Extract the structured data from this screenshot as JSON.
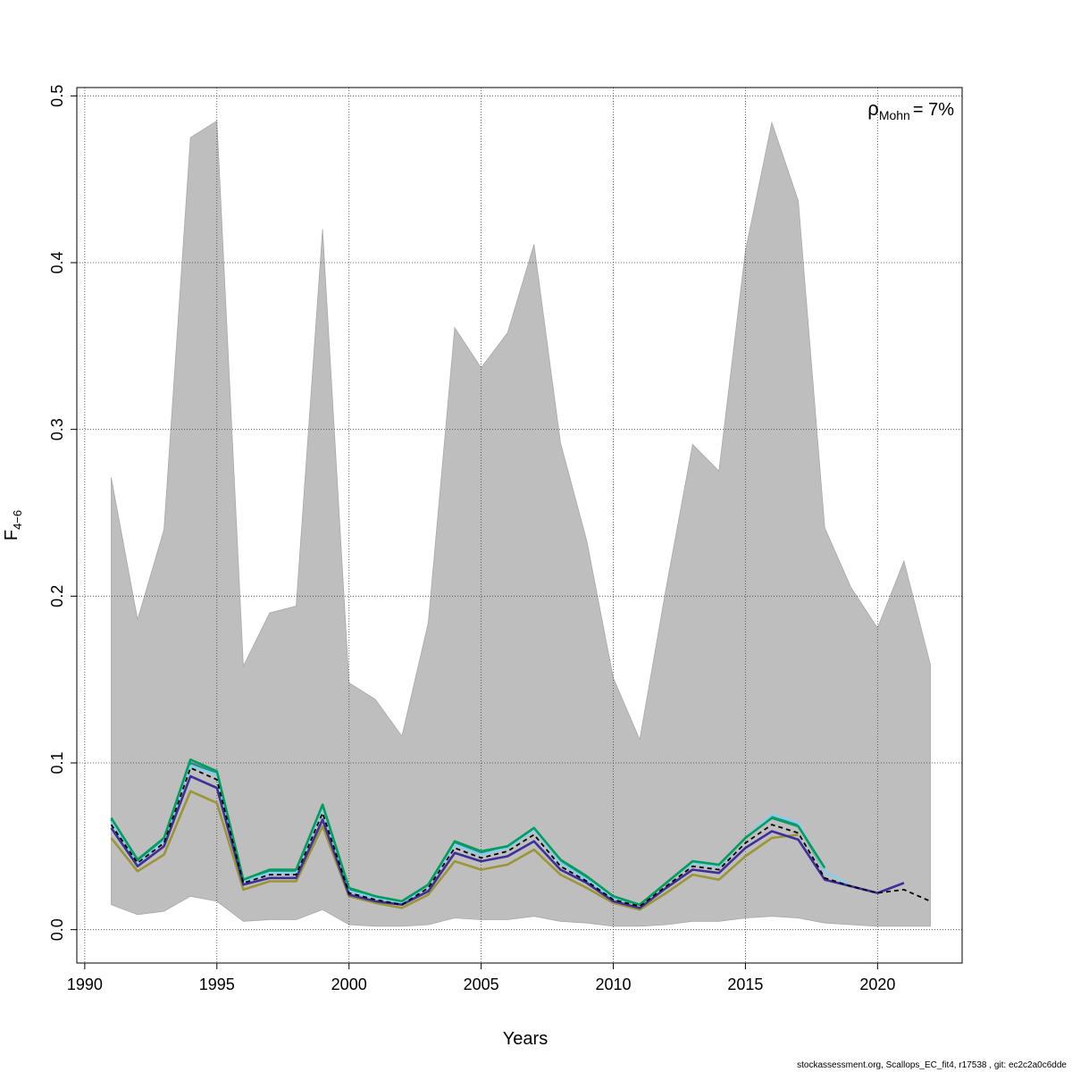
{
  "chart_data": {
    "type": "line",
    "title": "",
    "xlabel": "Years",
    "ylabel": "F",
    "ylabel_sub": "4−6",
    "xlim": [
      1989.7,
      2023.2
    ],
    "ylim": [
      -0.02,
      0.505
    ],
    "grid": true,
    "x_ticks": [
      1990,
      1995,
      2000,
      2005,
      2010,
      2015,
      2020
    ],
    "y_ticks": [
      0.0,
      0.1,
      0.2,
      0.3,
      0.4,
      0.5
    ],
    "x_tick_labels": [
      "1990",
      "1995",
      "2000",
      "2005",
      "2010",
      "2015",
      "2020"
    ],
    "y_tick_labels": [
      "0.0",
      "0.1",
      "0.2",
      "0.3",
      "0.4",
      "0.5"
    ],
    "annotation": {
      "symbol": "ρ",
      "subscript": "Mohn",
      "text": "= 7%"
    },
    "confidence_band": {
      "x": [
        1991,
        1992,
        1993,
        1994,
        1995,
        1996,
        1997,
        1998,
        1999,
        2000,
        2001,
        2002,
        2003,
        2004,
        2005,
        2006,
        2007,
        2008,
        2009,
        2010,
        2011,
        2012,
        2013,
        2014,
        2015,
        2016,
        2017,
        2018,
        2019,
        2020,
        2021,
        2022
      ],
      "upper": [
        0.271,
        0.186,
        0.24,
        0.475,
        0.485,
        0.158,
        0.19,
        0.194,
        0.42,
        0.148,
        0.138,
        0.116,
        0.184,
        0.361,
        0.337,
        0.358,
        0.411,
        0.292,
        0.233,
        0.151,
        0.114,
        0.205,
        0.291,
        0.275,
        0.407,
        0.484,
        0.437,
        0.241,
        0.205,
        0.181,
        0.221,
        0.159
      ],
      "lower": [
        0.015,
        0.009,
        0.011,
        0.02,
        0.017,
        0.005,
        0.006,
        0.006,
        0.012,
        0.003,
        0.002,
        0.002,
        0.003,
        0.007,
        0.006,
        0.006,
        0.008,
        0.005,
        0.004,
        0.002,
        0.002,
        0.003,
        0.005,
        0.005,
        0.007,
        0.008,
        0.007,
        0.004,
        0.003,
        0.002,
        0.002,
        0.002
      ],
      "color": "#bebebe"
    },
    "series": [
      {
        "color": "#2a8f8f",
        "dash": false,
        "x": [
          1991,
          1992,
          1993,
          1994,
          1995,
          1996,
          1997,
          1998,
          1999,
          2000,
          2001,
          2002,
          2003,
          2004,
          2005,
          2006,
          2007,
          2008,
          2009,
          2010,
          2011,
          2012,
          2013,
          2014,
          2015,
          2016,
          2017,
          2018
        ],
        "values": [
          0.066,
          0.041,
          0.054,
          0.1,
          0.094,
          0.029,
          0.035,
          0.035,
          0.074,
          0.024,
          0.019,
          0.017,
          0.027,
          0.052,
          0.046,
          0.05,
          0.061,
          0.041,
          0.031,
          0.019,
          0.015,
          0.028,
          0.041,
          0.038,
          0.055,
          0.068,
          0.063,
          0.035
        ]
      },
      {
        "color": "#87ceeb",
        "dash": false,
        "x": [
          1991,
          1992,
          1993,
          1994,
          1995,
          1996,
          1997,
          1998,
          1999,
          2000,
          2001,
          2002,
          2003,
          2004,
          2005,
          2006,
          2007,
          2008,
          2009,
          2010,
          2011,
          2012,
          2013,
          2014,
          2015,
          2016,
          2017,
          2018,
          2019
        ],
        "values": [
          0.065,
          0.04,
          0.053,
          0.098,
          0.093,
          0.029,
          0.034,
          0.034,
          0.073,
          0.023,
          0.019,
          0.016,
          0.026,
          0.051,
          0.045,
          0.049,
          0.06,
          0.04,
          0.03,
          0.019,
          0.015,
          0.028,
          0.04,
          0.038,
          0.055,
          0.069,
          0.064,
          0.035,
          0.026
        ]
      },
      {
        "color": "#009e5c",
        "dash": false,
        "x": [
          1991,
          1992,
          1993,
          1994,
          1995,
          1996,
          1997,
          1998,
          1999,
          2000,
          2001,
          2002,
          2003,
          2004,
          2005,
          2006,
          2007,
          2008,
          2009,
          2010,
          2011,
          2012,
          2013,
          2014,
          2015,
          2016,
          2017,
          2018
        ],
        "values": [
          0.067,
          0.042,
          0.055,
          0.102,
          0.095,
          0.03,
          0.036,
          0.036,
          0.075,
          0.025,
          0.02,
          0.017,
          0.027,
          0.053,
          0.047,
          0.05,
          0.061,
          0.042,
          0.032,
          0.02,
          0.015,
          0.028,
          0.041,
          0.039,
          0.055,
          0.067,
          0.062,
          0.037
        ]
      },
      {
        "color": "#9b9536",
        "dash": false,
        "x": [
          1991,
          1992,
          1993,
          1994,
          1995,
          1996,
          1997,
          1998,
          1999,
          2000,
          2001,
          2002,
          2003,
          2004,
          2005,
          2006,
          2007,
          2008,
          2009,
          2010,
          2011,
          2012,
          2013,
          2014,
          2015,
          2016,
          2017
        ],
        "values": [
          0.055,
          0.035,
          0.045,
          0.083,
          0.076,
          0.024,
          0.029,
          0.029,
          0.062,
          0.02,
          0.016,
          0.013,
          0.021,
          0.041,
          0.036,
          0.039,
          0.048,
          0.033,
          0.025,
          0.016,
          0.012,
          0.022,
          0.033,
          0.03,
          0.044,
          0.055,
          0.057
        ]
      },
      {
        "color": "#3d2e99",
        "dash": false,
        "x": [
          1991,
          1992,
          1993,
          1994,
          1995,
          1996,
          1997,
          1998,
          1999,
          2000,
          2001,
          2002,
          2003,
          2004,
          2005,
          2006,
          2007,
          2008,
          2009,
          2010,
          2011,
          2012,
          2013,
          2014,
          2015,
          2016,
          2017,
          2018,
          2019,
          2020,
          2021
        ],
        "values": [
          0.061,
          0.038,
          0.05,
          0.092,
          0.085,
          0.027,
          0.031,
          0.031,
          0.066,
          0.021,
          0.017,
          0.015,
          0.023,
          0.046,
          0.041,
          0.044,
          0.053,
          0.036,
          0.028,
          0.017,
          0.013,
          0.025,
          0.036,
          0.034,
          0.049,
          0.059,
          0.054,
          0.03,
          0.026,
          0.022,
          0.028
        ]
      },
      {
        "color": "#000000",
        "dash": true,
        "x": [
          1991,
          1992,
          1993,
          1994,
          1995,
          1996,
          1997,
          1998,
          1999,
          2000,
          2001,
          2002,
          2003,
          2004,
          2005,
          2006,
          2007,
          2008,
          2009,
          2010,
          2011,
          2012,
          2013,
          2014,
          2015,
          2016,
          2017,
          2018,
          2019,
          2020,
          2021,
          2022
        ],
        "values": [
          0.063,
          0.04,
          0.052,
          0.097,
          0.09,
          0.028,
          0.033,
          0.033,
          0.07,
          0.022,
          0.018,
          0.015,
          0.025,
          0.049,
          0.043,
          0.047,
          0.057,
          0.038,
          0.029,
          0.018,
          0.014,
          0.026,
          0.038,
          0.036,
          0.052,
          0.063,
          0.058,
          0.031,
          0.026,
          0.022,
          0.024,
          0.017
        ]
      }
    ]
  },
  "footer": {
    "text": "stockassessment.org, Scallops_EC_fit4, r17538 , git: ec2c2a0c6dde"
  }
}
